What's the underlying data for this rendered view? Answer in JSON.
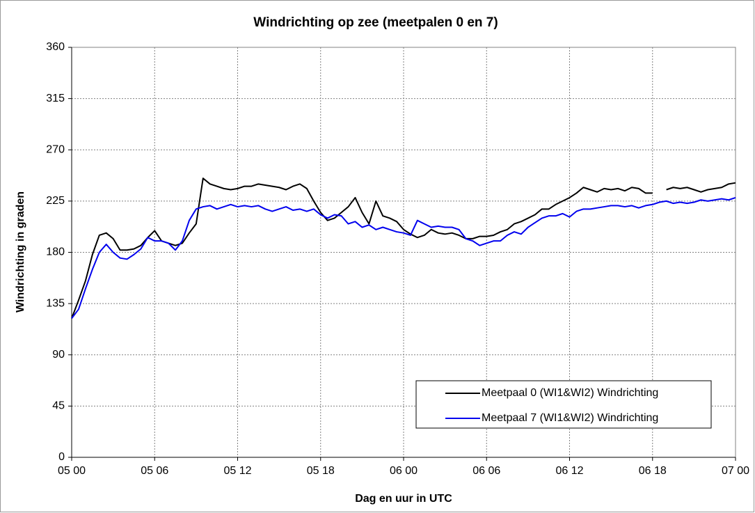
{
  "chart_data": {
    "type": "line",
    "title": "Windrichting op zee (meetpalen 0 en 7)",
    "xlabel": "Dag en uur in UTC",
    "ylabel": "Windrichting in graden",
    "x": [
      0,
      0.5,
      1,
      1.5,
      2,
      2.5,
      3,
      3.5,
      4,
      4.5,
      5,
      5.5,
      6,
      6.5,
      7,
      7.5,
      8,
      8.5,
      9,
      9.5,
      10,
      10.5,
      11,
      11.5,
      12,
      12.5,
      13,
      13.5,
      14,
      14.5,
      15,
      15.5,
      16,
      16.5,
      17,
      17.5,
      18,
      18.5,
      19,
      19.5,
      20,
      20.5,
      21,
      21.5,
      22,
      22.5,
      23,
      23.5,
      24,
      24.5,
      25,
      25.5,
      26,
      26.5,
      27,
      27.5,
      28,
      28.5,
      29,
      29.5,
      30,
      30.5,
      31,
      31.5,
      32,
      32.5,
      33,
      33.5,
      34,
      34.5,
      35,
      35.5,
      36,
      36.5,
      37,
      37.5,
      38,
      38.5,
      39,
      39.5,
      40,
      40.5,
      41,
      41.5,
      42,
      42.5,
      43,
      43.5,
      44,
      44.5,
      45,
      45.5,
      46,
      46.5,
      47,
      47.5,
      48
    ],
    "series": [
      {
        "name": "Meetpaal 0 (WI1&WI2) Windrichting",
        "color": "#000000",
        "values": [
          122,
          138,
          155,
          178,
          195,
          197,
          192,
          182,
          182,
          183,
          186,
          193,
          199,
          190,
          188,
          186,
          188,
          197,
          205,
          245,
          240,
          238,
          236,
          235,
          236,
          238,
          238,
          240,
          239,
          238,
          237,
          235,
          238,
          240,
          236,
          225,
          215,
          208,
          210,
          215,
          220,
          228,
          215,
          205,
          225,
          212,
          210,
          207,
          200,
          196,
          193,
          195,
          200,
          197,
          196,
          197,
          195,
          192,
          192,
          194,
          194,
          195,
          198,
          200,
          205,
          207,
          210,
          213,
          218,
          218,
          222,
          225,
          228,
          232,
          237,
          235,
          233,
          236,
          235,
          236,
          234,
          237,
          236,
          232,
          232,
          null,
          235,
          237,
          236,
          237,
          235,
          233,
          235,
          236,
          237,
          240,
          241
        ]
      },
      {
        "name": "Meetpaal 7 (WI1&WI2) Windrichting",
        "color": "#0000ee",
        "values": [
          122,
          130,
          148,
          165,
          180,
          187,
          180,
          175,
          174,
          178,
          183,
          193,
          190,
          190,
          188,
          182,
          190,
          208,
          218,
          220,
          221,
          218,
          220,
          222,
          220,
          221,
          220,
          221,
          218,
          216,
          218,
          220,
          217,
          218,
          216,
          218,
          213,
          210,
          213,
          212,
          205,
          207,
          202,
          204,
          200,
          202,
          200,
          198,
          197,
          195,
          208,
          205,
          202,
          203,
          202,
          202,
          200,
          192,
          190,
          186,
          188,
          190,
          190,
          195,
          198,
          196,
          202,
          206,
          210,
          212,
          212,
          214,
          211,
          216,
          218,
          218,
          219,
          220,
          221,
          221,
          220,
          221,
          219,
          221,
          222,
          224,
          225,
          223,
          224,
          223,
          224,
          226,
          225,
          226,
          227,
          226,
          228
        ]
      }
    ],
    "xlim": [
      0,
      48
    ],
    "xticks": [
      {
        "value": 0,
        "label": "05 00"
      },
      {
        "value": 6,
        "label": "05 06"
      },
      {
        "value": 12,
        "label": "05 12"
      },
      {
        "value": 18,
        "label": "05 18"
      },
      {
        "value": 24,
        "label": "06 00"
      },
      {
        "value": 30,
        "label": "06 06"
      },
      {
        "value": 36,
        "label": "06 12"
      },
      {
        "value": 42,
        "label": "06 18"
      },
      {
        "value": 48,
        "label": "07 00"
      }
    ],
    "ylim": [
      0,
      360
    ],
    "yticks": [
      0,
      45,
      90,
      135,
      180,
      225,
      270,
      315,
      360
    ],
    "grid": true,
    "legend": "lower right"
  }
}
